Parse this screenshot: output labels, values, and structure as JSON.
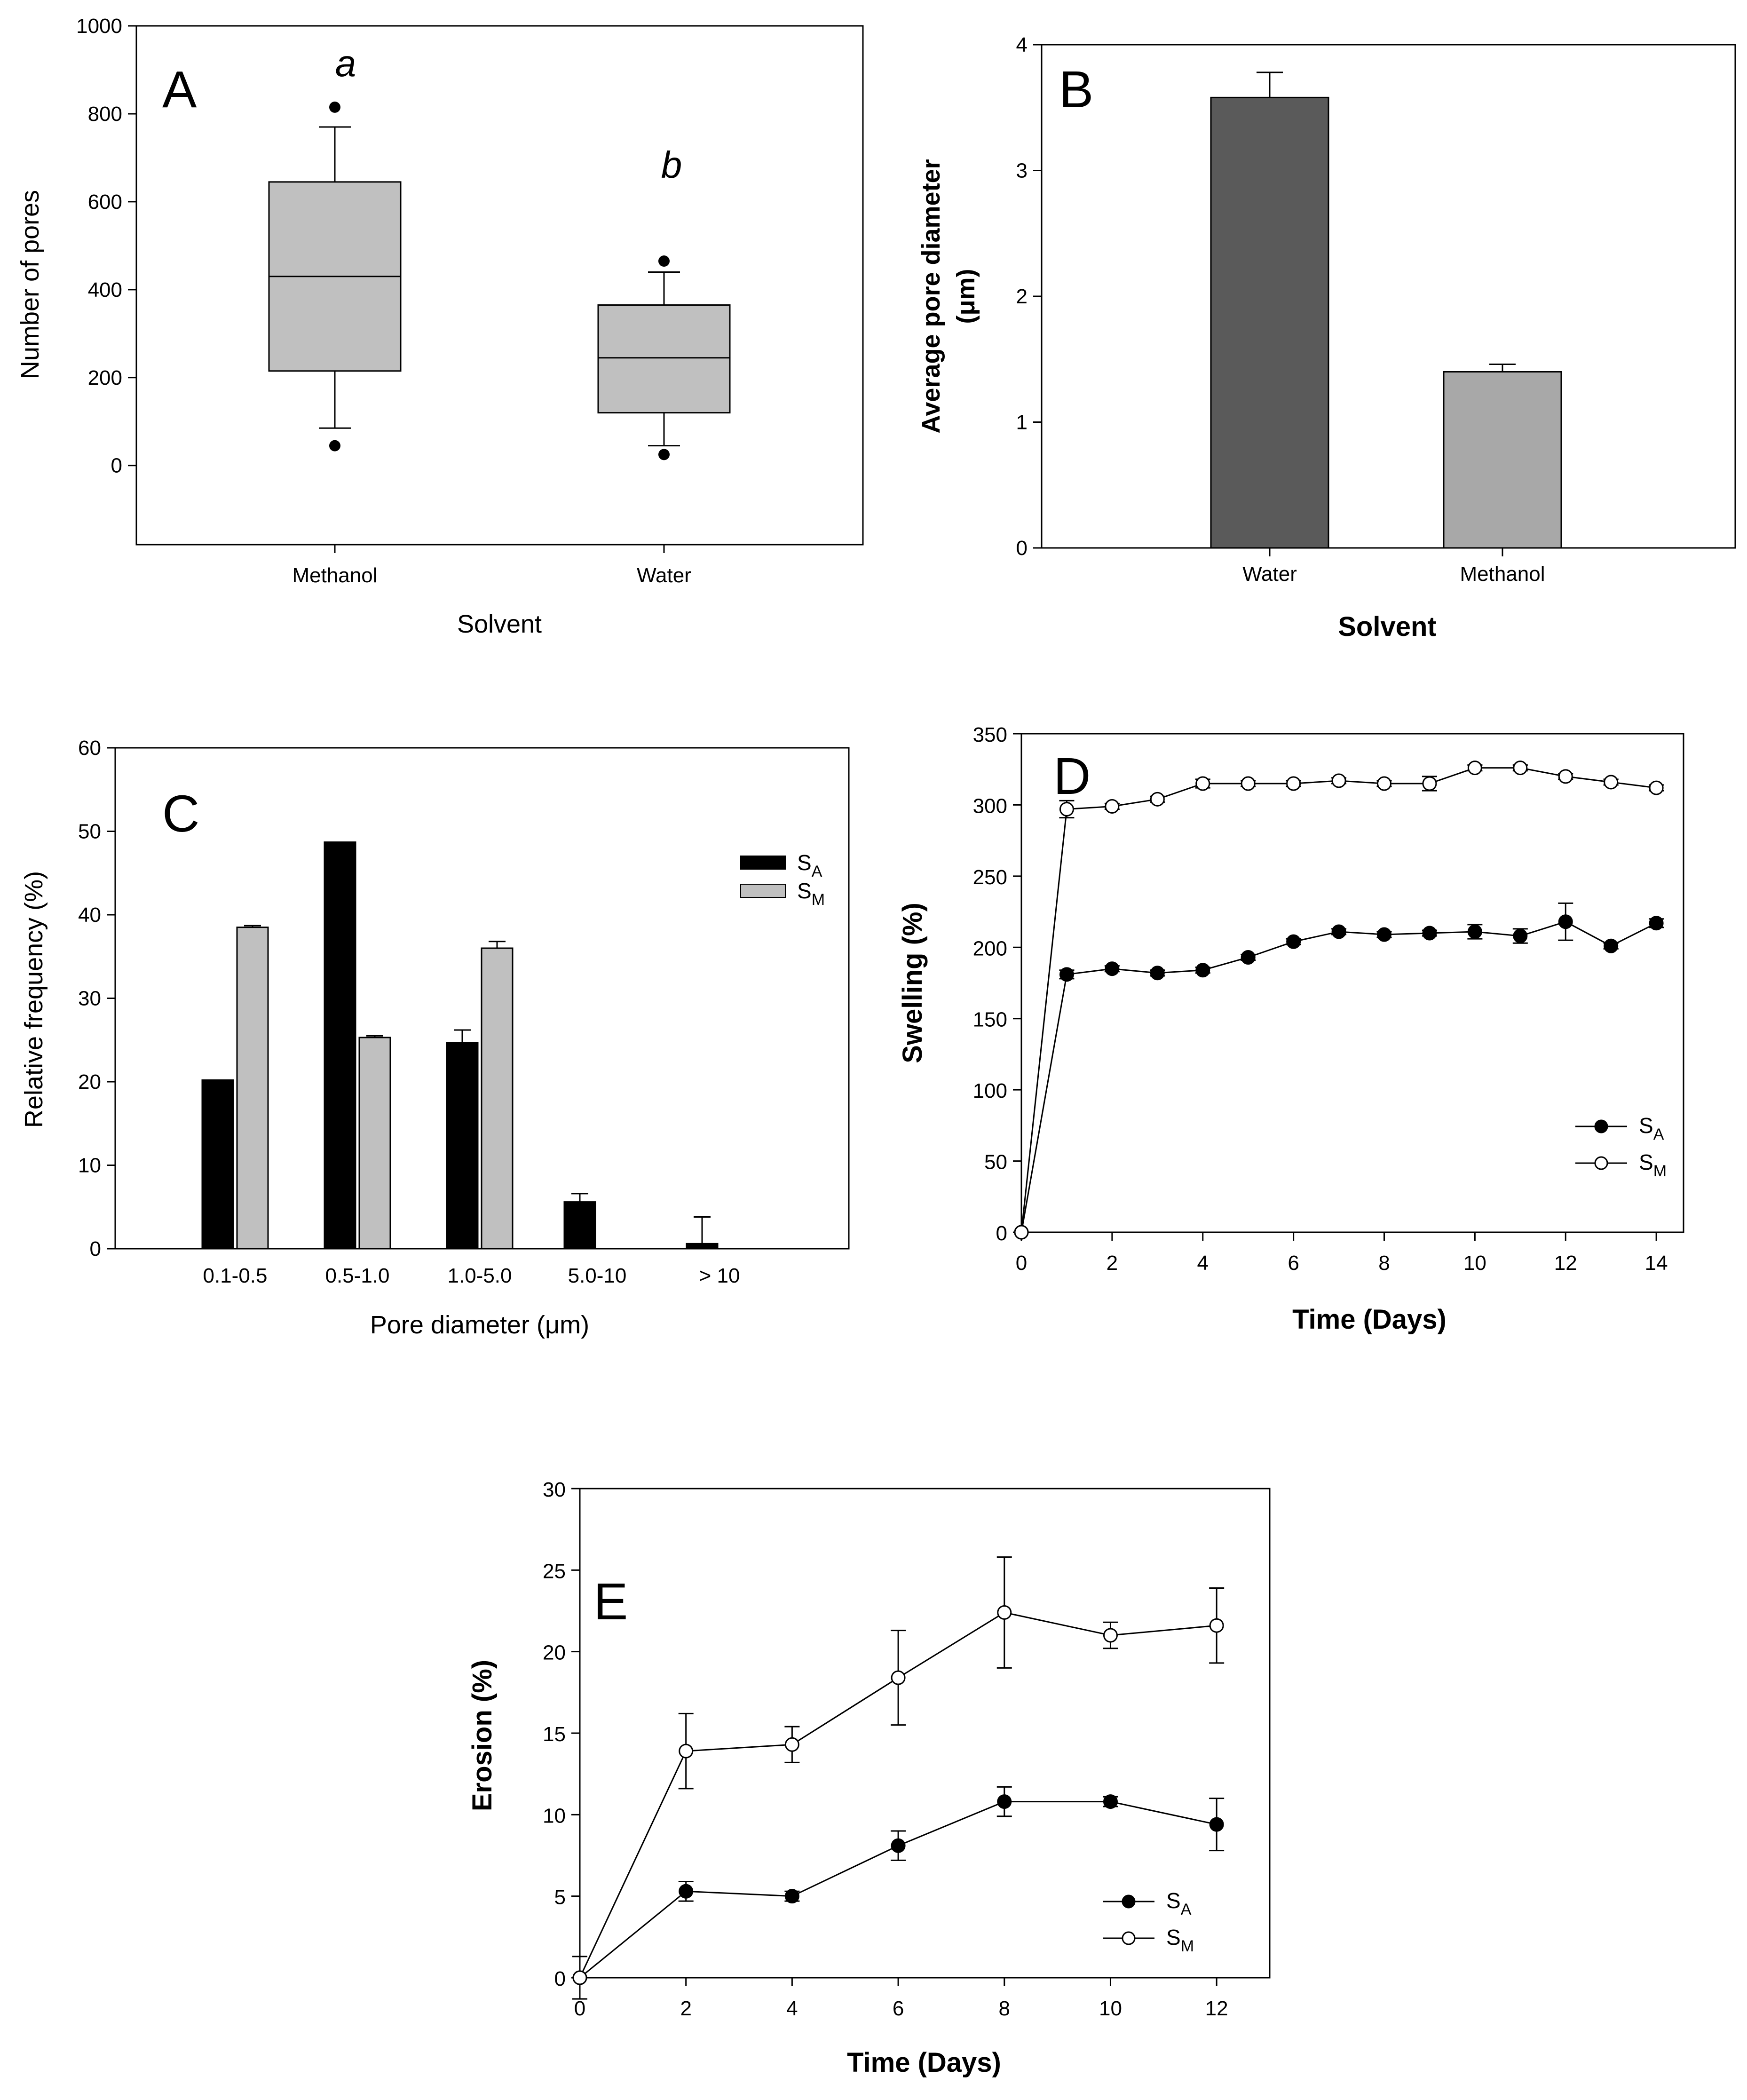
{
  "colors": {
    "axis": "#000000",
    "box_fill": "#c0c0c0",
    "bar_water": "#5a5a5a",
    "bar_methanol": "#a8a8a8",
    "sa_fill": "#000000",
    "sm_fill": "#c0c0c0",
    "line_sa": "#000000",
    "marker_sm": "#ffffff"
  },
  "chart_data": [
    {
      "id": "A",
      "type": "box",
      "panel_label": "A",
      "xlabel": "Solvent",
      "ylabel": "Number of pores",
      "ylim": [
        -180,
        1000
      ],
      "yticks": [
        0,
        200,
        400,
        600,
        800,
        1000
      ],
      "categories": [
        "Methanol",
        "Water"
      ],
      "boxes": [
        {
          "category": "Methanol",
          "q1": 215,
          "median": 430,
          "q3": 645,
          "whisker_low": 85,
          "whisker_high": 770,
          "outliers": [
            45,
            815
          ],
          "letter": "a"
        },
        {
          "category": "Water",
          "q1": 120,
          "median": 245,
          "q3": 365,
          "whisker_low": 45,
          "whisker_high": 440,
          "outliers": [
            25,
            465
          ],
          "letter": "b"
        }
      ]
    },
    {
      "id": "B",
      "type": "bar",
      "panel_label": "B",
      "xlabel": "Solvent",
      "ylabel": "Average pore diameter",
      "ylabel_unit": "(μm)",
      "ylim": [
        0,
        4
      ],
      "yticks": [
        0,
        1,
        2,
        3,
        4
      ],
      "categories": [
        "Water",
        "Methanol"
      ],
      "values": [
        3.58,
        1.4
      ],
      "errors": [
        0.2,
        0.06
      ]
    },
    {
      "id": "C",
      "type": "bar",
      "panel_label": "C",
      "xlabel": "Pore diameter (μm)",
      "ylabel": "Relative frequency  (%)",
      "ylim": [
        0,
        60
      ],
      "yticks": [
        0,
        10,
        20,
        30,
        40,
        50,
        60
      ],
      "categories": [
        "0.1-0.5",
        "0.5-1.0",
        "1.0-5.0",
        "5.0-10",
        "> 10"
      ],
      "series": [
        {
          "name": "S",
          "sub": "A",
          "values": [
            20.2,
            48.7,
            24.7,
            5.6,
            0.6
          ],
          "errors": [
            0,
            0,
            1.5,
            1.0,
            3.2
          ]
        },
        {
          "name": "S",
          "sub": "M",
          "values": [
            38.5,
            25.3,
            36.0,
            0,
            0
          ],
          "errors": [
            0.2,
            0.2,
            0.8,
            0,
            0
          ]
        }
      ],
      "legend": "right"
    },
    {
      "id": "D",
      "type": "line",
      "panel_label": "D",
      "xlabel": "Time (Days)",
      "ylabel": "Swelling (%)",
      "xlim": [
        0,
        14.6
      ],
      "ylim": [
        0,
        350
      ],
      "xticks": [
        0,
        2,
        4,
        6,
        8,
        10,
        12,
        14
      ],
      "yticks": [
        0,
        50,
        100,
        150,
        200,
        250,
        300,
        350
      ],
      "series": [
        {
          "name": "S",
          "sub": "A",
          "marker": "filled",
          "x": [
            0,
            1,
            2,
            3,
            4,
            5,
            6,
            7,
            8,
            9,
            10,
            11,
            12,
            13,
            14
          ],
          "y": [
            0,
            181,
            185,
            182,
            184,
            193,
            204,
            211,
            209,
            210,
            211,
            208,
            218,
            201,
            217
          ],
          "err": [
            0,
            3,
            2,
            2,
            2,
            2,
            2,
            2,
            2,
            2,
            5,
            5,
            13,
            2,
            3
          ]
        },
        {
          "name": "S",
          "sub": "M",
          "marker": "open",
          "x": [
            0,
            1,
            2,
            3,
            4,
            5,
            6,
            7,
            8,
            9,
            10,
            11,
            12,
            13,
            14
          ],
          "y": [
            0,
            297,
            299,
            304,
            315,
            315,
            315,
            317,
            315,
            315,
            326,
            326,
            320,
            316,
            312
          ],
          "err": [
            0,
            6,
            2,
            2,
            3,
            2,
            2,
            2,
            2,
            5,
            2,
            2,
            2,
            2,
            2
          ]
        }
      ],
      "legend": "bottom-right"
    },
    {
      "id": "E",
      "type": "line",
      "panel_label": "E",
      "xlabel": "Time (Days)",
      "ylabel": "Erosion (%)",
      "xlim": [
        0,
        13
      ],
      "ylim": [
        0,
        30
      ],
      "xticks": [
        0,
        2,
        4,
        6,
        8,
        10,
        12
      ],
      "yticks": [
        0,
        5,
        10,
        15,
        20,
        25,
        30
      ],
      "series": [
        {
          "name": "S",
          "sub": "A",
          "marker": "filled",
          "x": [
            0,
            2,
            4,
            6,
            8,
            10,
            12
          ],
          "y": [
            0,
            5.3,
            5.0,
            8.1,
            10.8,
            10.8,
            9.4
          ],
          "err": [
            1.3,
            0.6,
            0.3,
            0.9,
            0.9,
            0.3,
            1.6
          ]
        },
        {
          "name": "S",
          "sub": "M",
          "marker": "open",
          "x": [
            0,
            2,
            4,
            6,
            8,
            10,
            12
          ],
          "y": [
            0,
            13.9,
            14.3,
            18.4,
            22.4,
            21.0,
            21.6
          ],
          "err": [
            0,
            2.3,
            1.1,
            2.9,
            3.4,
            0.8,
            2.3
          ]
        }
      ],
      "legend": "bottom-right"
    }
  ]
}
